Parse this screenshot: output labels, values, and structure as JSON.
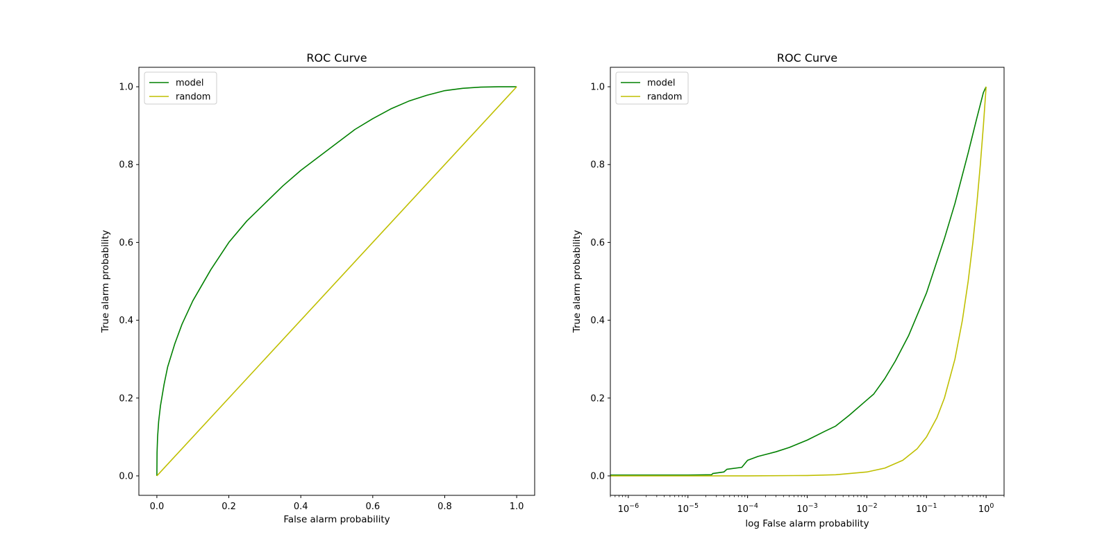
{
  "chart_data": [
    {
      "type": "line",
      "title": "ROC Curve",
      "xlabel": "False alarm probability",
      "ylabel": "True alarm probability",
      "xscale": "linear",
      "xlim": [
        -0.05,
        1.05
      ],
      "ylim": [
        -0.05,
        1.05
      ],
      "xticks": [
        0.0,
        0.2,
        0.4,
        0.6,
        0.8,
        1.0
      ],
      "xtick_labels": [
        "0.0",
        "0.2",
        "0.4",
        "0.6",
        "0.8",
        "1.0"
      ],
      "yticks": [
        0.0,
        0.2,
        0.4,
        0.6,
        0.8,
        1.0
      ],
      "ytick_labels": [
        "0.0",
        "0.2",
        "0.4",
        "0.6",
        "0.8",
        "1.0"
      ],
      "legend": "top-left",
      "grid": false,
      "series": [
        {
          "name": "model",
          "color": "#008000",
          "x": [
            0.0,
            0.0005,
            0.002,
            0.005,
            0.01,
            0.02,
            0.03,
            0.05,
            0.07,
            0.1,
            0.15,
            0.2,
            0.25,
            0.3,
            0.35,
            0.4,
            0.45,
            0.5,
            0.55,
            0.6,
            0.65,
            0.7,
            0.75,
            0.8,
            0.85,
            0.9,
            0.95,
            1.0
          ],
          "y": [
            0.0,
            0.06,
            0.1,
            0.14,
            0.18,
            0.235,
            0.28,
            0.34,
            0.39,
            0.45,
            0.53,
            0.6,
            0.655,
            0.7,
            0.745,
            0.785,
            0.82,
            0.855,
            0.89,
            0.918,
            0.943,
            0.963,
            0.978,
            0.99,
            0.996,
            0.999,
            1.0,
            1.0
          ]
        },
        {
          "name": "random",
          "color": "#bfbf00",
          "x": [
            0.0,
            1.0
          ],
          "y": [
            0.0,
            1.0
          ]
        }
      ]
    },
    {
      "type": "line",
      "title": "ROC Curve",
      "xlabel": "log False alarm probability",
      "ylabel": "True alarm probability",
      "xscale": "log",
      "xlim": [
        5e-07,
        2
      ],
      "ylim": [
        -0.05,
        1.05
      ],
      "xticks": [
        1e-06,
        1e-05,
        0.0001,
        0.001,
        0.01,
        0.1,
        1
      ],
      "xtick_labels": [
        {
          "base": "10",
          "exp": "−6"
        },
        {
          "base": "10",
          "exp": "−5"
        },
        {
          "base": "10",
          "exp": "−4"
        },
        {
          "base": "10",
          "exp": "−3"
        },
        {
          "base": "10",
          "exp": "−2"
        },
        {
          "base": "10",
          "exp": "−1"
        },
        {
          "base": "10",
          "exp": "0"
        }
      ],
      "yticks": [
        0.0,
        0.2,
        0.4,
        0.6,
        0.8,
        1.0
      ],
      "ytick_labels": [
        "0.0",
        "0.2",
        "0.4",
        "0.6",
        "0.8",
        "1.0"
      ],
      "legend": "top-left",
      "grid": false,
      "series": [
        {
          "name": "model",
          "color": "#008000",
          "x": [
            5e-07,
            1e-06,
            5e-06,
            1e-05,
            2.5e-05,
            2.6e-05,
            4e-05,
            4.5e-05,
            8e-05,
            0.0001,
            0.00015,
            0.0002,
            0.0003,
            0.0005,
            0.001,
            0.002,
            0.003,
            0.005,
            0.01,
            0.013,
            0.02,
            0.03,
            0.05,
            0.1,
            0.2,
            0.3,
            0.5,
            0.7,
            0.9,
            1.0
          ],
          "y": [
            0.002,
            0.002,
            0.002,
            0.002,
            0.003,
            0.006,
            0.01,
            0.017,
            0.022,
            0.04,
            0.05,
            0.055,
            0.062,
            0.073,
            0.092,
            0.115,
            0.128,
            0.155,
            0.195,
            0.21,
            0.25,
            0.295,
            0.36,
            0.47,
            0.61,
            0.7,
            0.83,
            0.92,
            0.985,
            1.0
          ]
        },
        {
          "name": "random",
          "color": "#bfbf00",
          "x": [
            5e-07,
            1e-06,
            1e-05,
            0.0001,
            0.001,
            0.003,
            0.01,
            0.02,
            0.04,
            0.07,
            0.1,
            0.15,
            0.2,
            0.3,
            0.4,
            0.5,
            0.6,
            0.7,
            0.8,
            0.9,
            1.0
          ],
          "y": [
            5e-07,
            1e-06,
            1e-05,
            0.0001,
            0.001,
            0.003,
            0.01,
            0.02,
            0.04,
            0.07,
            0.1,
            0.15,
            0.2,
            0.3,
            0.4,
            0.5,
            0.6,
            0.7,
            0.8,
            0.9,
            1.0
          ]
        }
      ]
    }
  ]
}
